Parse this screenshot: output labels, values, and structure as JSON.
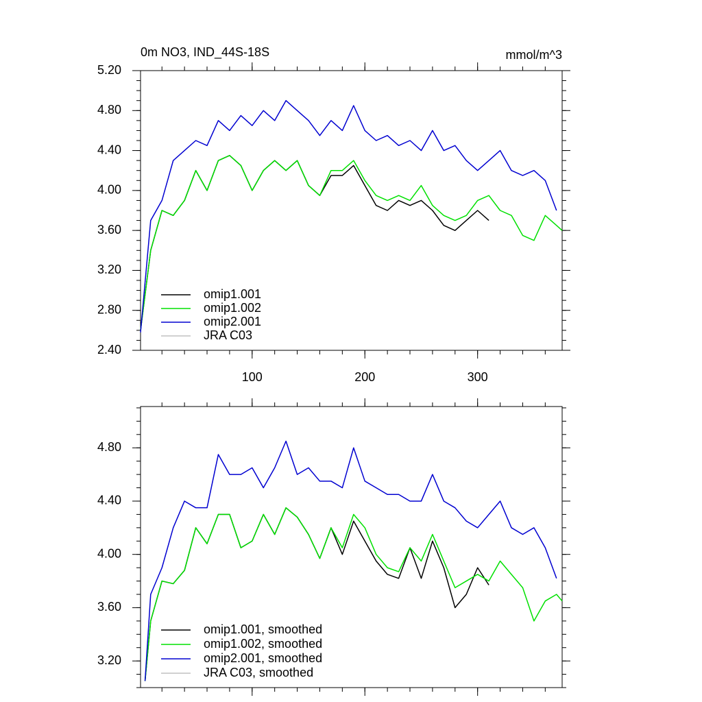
{
  "chart_data": [
    {
      "type": "line",
      "title": "0m NO3, IND_44S-18S",
      "right_title": "mmol/m^3",
      "x": [
        1,
        10,
        20,
        30,
        40,
        50,
        60,
        70,
        80,
        90,
        100,
        110,
        120,
        130,
        140,
        150,
        160,
        170,
        180,
        190,
        200,
        210,
        220,
        230,
        240,
        250,
        260,
        270,
        280,
        290,
        300,
        310,
        320,
        330,
        340,
        350,
        360,
        370,
        375
      ],
      "xlim": [
        1,
        375
      ],
      "xticks": [
        100,
        200,
        300
      ],
      "ylim": [
        2.4,
        5.2
      ],
      "yticks": [
        {
          "value": 2.4,
          "label": "2.40"
        },
        {
          "value": 2.8,
          "label": "2.80"
        },
        {
          "value": 3.2,
          "label": "3.20"
        },
        {
          "value": 3.6,
          "label": "3.60"
        },
        {
          "value": 4.0,
          "label": "4.00"
        },
        {
          "value": 4.4,
          "label": "4.40"
        },
        {
          "value": 4.8,
          "label": "4.80"
        },
        {
          "value": 5.2,
          "label": "5.20"
        }
      ],
      "legend": "lower left",
      "series": [
        {
          "name": "omip1.001",
          "color": "#000000",
          "values": [
            2.6,
            3.4,
            3.8,
            3.75,
            3.9,
            4.2,
            4.0,
            4.3,
            4.35,
            4.25,
            4.0,
            4.2,
            4.3,
            4.2,
            4.3,
            4.05,
            3.95,
            4.15,
            4.15,
            4.25,
            4.05,
            3.85,
            3.8,
            3.9,
            3.85,
            3.9,
            3.8,
            3.65,
            3.6,
            3.7,
            3.8,
            3.7,
            null,
            null,
            null,
            null,
            null,
            null,
            null
          ]
        },
        {
          "name": "omip1.002",
          "color": "#00e000",
          "values": [
            2.6,
            3.4,
            3.8,
            3.75,
            3.9,
            4.2,
            4.0,
            4.3,
            4.35,
            4.25,
            4.0,
            4.2,
            4.3,
            4.2,
            4.3,
            4.05,
            3.95,
            4.2,
            4.2,
            4.3,
            4.1,
            3.95,
            3.9,
            3.95,
            3.9,
            4.05,
            3.85,
            3.75,
            3.7,
            3.75,
            3.9,
            3.95,
            3.8,
            3.75,
            3.55,
            3.5,
            3.75,
            3.65,
            3.6
          ]
        },
        {
          "name": "omip2.001",
          "color": "#0000d0",
          "values": [
            2.58,
            3.7,
            3.9,
            4.3,
            4.4,
            4.5,
            4.45,
            4.7,
            4.6,
            4.75,
            4.65,
            4.8,
            4.7,
            4.9,
            4.8,
            4.7,
            4.55,
            4.7,
            4.6,
            4.85,
            4.6,
            4.5,
            4.55,
            4.45,
            4.5,
            4.4,
            4.6,
            4.4,
            4.45,
            4.3,
            4.2,
            4.3,
            4.4,
            4.2,
            4.15,
            4.2,
            4.1,
            3.8,
            null
          ]
        },
        {
          "name": "JRA C03",
          "color": "#c0c0c0",
          "values": [
            null,
            null,
            null,
            null,
            null,
            null,
            null,
            null,
            null,
            null,
            null,
            null,
            null,
            null,
            null,
            null,
            null,
            null,
            null,
            null,
            null,
            null,
            null,
            null,
            null,
            null,
            null,
            null,
            null,
            null,
            null,
            null,
            null,
            null,
            null,
            null,
            null,
            null,
            null
          ]
        }
      ]
    },
    {
      "type": "line",
      "x": [
        5,
        10,
        20,
        30,
        40,
        50,
        60,
        70,
        80,
        90,
        100,
        110,
        120,
        130,
        140,
        150,
        160,
        170,
        180,
        190,
        200,
        210,
        220,
        230,
        240,
        250,
        260,
        270,
        280,
        290,
        300,
        310,
        320,
        330,
        340,
        350,
        360,
        370,
        375
      ],
      "xlim": [
        1,
        375
      ],
      "xticks": [
        100,
        200,
        300
      ],
      "ylim": [
        3.0,
        5.11
      ],
      "yticks": [
        {
          "value": 3.2,
          "label": "3.20"
        },
        {
          "value": 3.6,
          "label": "3.60"
        },
        {
          "value": 4.0,
          "label": "4.00"
        },
        {
          "value": 4.4,
          "label": "4.40"
        },
        {
          "value": 4.8,
          "label": "4.80"
        }
      ],
      "legend": "lower left",
      "series": [
        {
          "name": "omip1.001, smoothed",
          "color": "#000000",
          "values": [
            3.05,
            3.5,
            3.8,
            3.78,
            3.88,
            4.2,
            4.08,
            4.3,
            4.3,
            4.05,
            4.1,
            4.3,
            4.15,
            4.35,
            4.28,
            4.15,
            3.97,
            4.2,
            4.0,
            4.25,
            4.1,
            3.95,
            3.85,
            3.82,
            4.05,
            3.82,
            4.1,
            3.9,
            3.6,
            3.7,
            3.9,
            3.77,
            null,
            null,
            null,
            null,
            null,
            null,
            null
          ]
        },
        {
          "name": "omip1.002, smoothed",
          "color": "#00e000",
          "values": [
            3.05,
            3.5,
            3.8,
            3.78,
            3.88,
            4.2,
            4.08,
            4.3,
            4.3,
            4.05,
            4.1,
            4.3,
            4.15,
            4.35,
            4.28,
            4.15,
            3.97,
            4.2,
            4.05,
            4.3,
            4.2,
            4.0,
            3.9,
            3.87,
            4.05,
            3.95,
            4.15,
            3.95,
            3.75,
            3.8,
            3.85,
            3.8,
            3.95,
            3.85,
            3.75,
            3.5,
            3.65,
            3.7,
            3.65
          ]
        },
        {
          "name": "omip2.001, smoothed",
          "color": "#0000d0",
          "values": [
            3.05,
            3.7,
            3.9,
            4.2,
            4.4,
            4.35,
            4.35,
            4.75,
            4.6,
            4.6,
            4.65,
            4.5,
            4.65,
            4.85,
            4.6,
            4.65,
            4.55,
            4.55,
            4.5,
            4.8,
            4.55,
            4.5,
            4.45,
            4.45,
            4.4,
            4.4,
            4.6,
            4.4,
            4.35,
            4.25,
            4.2,
            4.3,
            4.4,
            4.2,
            4.15,
            4.2,
            4.05,
            3.82,
            null
          ]
        },
        {
          "name": "JRA C03, smoothed",
          "color": "#c0c0c0",
          "values": [
            null,
            null,
            null,
            null,
            null,
            null,
            null,
            null,
            null,
            null,
            null,
            null,
            null,
            null,
            null,
            null,
            null,
            null,
            null,
            null,
            null,
            null,
            null,
            null,
            null,
            null,
            null,
            null,
            null,
            null,
            null,
            null,
            null,
            null,
            null,
            null,
            null,
            null,
            null
          ]
        }
      ]
    }
  ]
}
